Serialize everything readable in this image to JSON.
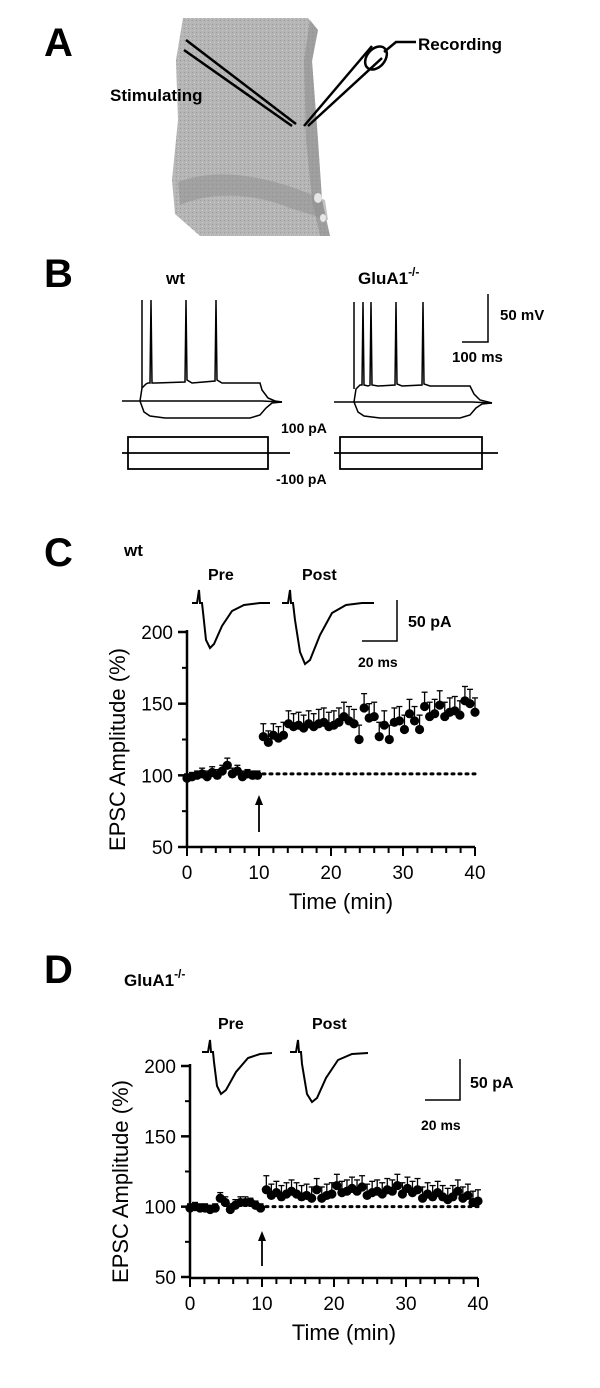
{
  "panel_labels": [
    "A",
    "B",
    "C",
    "D"
  ],
  "panel_a": {
    "stimulating_label": "Stimulating",
    "recording_label": "Recording"
  },
  "panel_b": {
    "wt_label": "wt",
    "ko_label_main": "GluA1",
    "ko_label_sup": "-/-",
    "scale_voltage": "50 mV",
    "scale_time": "100 ms",
    "current_pos": "100 pA",
    "current_neg": "-100 pA"
  },
  "colors": {
    "ink": "#000000",
    "slice_tissue": "#b3b3b3",
    "slice_dark": "#8f8f8f",
    "background": "#ffffff"
  },
  "chart_data": [
    {
      "type": "scatter",
      "group_label": "wt",
      "group_label_sup": "",
      "trace_pre_label": "Pre",
      "trace_post_label": "Post",
      "scale_current": "50 pA",
      "scale_time": "20 ms",
      "xlabel": "Time (min)",
      "ylabel": "EPSC Amplitude (%)",
      "xlim": [
        0,
        40
      ],
      "ylim": [
        50,
        200
      ],
      "xticks": [
        0,
        10,
        20,
        30,
        40
      ],
      "yticks": [
        50,
        100,
        150,
        200
      ],
      "baseline": 101,
      "stimulus_arrow_x": 10,
      "series": [
        {
          "x": [
            0,
            0.7,
            1.4,
            2.1,
            2.8,
            3.5,
            4.2,
            4.9,
            5.6,
            6.3,
            7,
            7.7,
            8.4,
            9.1,
            9.8,
            10.6,
            11.3,
            12,
            12.7,
            13.4,
            14.1,
            14.8,
            15.5,
            16.2,
            16.9,
            17.6,
            18.3,
            19,
            19.7,
            20.4,
            21.1,
            21.8,
            22.5,
            23.2,
            23.9,
            24.6,
            25.3,
            26,
            26.7,
            27.4,
            28.1,
            28.8,
            29.5,
            30.2,
            30.9,
            31.6,
            32.3,
            33,
            33.7,
            34.4,
            35.1,
            35.8,
            36.5,
            37.2,
            37.9,
            38.6,
            39.3,
            40
          ],
          "y": [
            98,
            99,
            100,
            101,
            99,
            102,
            100,
            103,
            107,
            101,
            103,
            99,
            101,
            100,
            100,
            127,
            123,
            128,
            126,
            128,
            136,
            134,
            135,
            133,
            136,
            134,
            136,
            137,
            134,
            135,
            137,
            141,
            138,
            136,
            125,
            147,
            140,
            141,
            127,
            135,
            125,
            137,
            138,
            132,
            143,
            138,
            132,
            148,
            141,
            143,
            149,
            141,
            144,
            145,
            142,
            152,
            150,
            144
          ],
          "err": [
            3,
            3,
            3,
            4,
            4,
            4,
            4,
            4,
            5,
            4,
            4,
            4,
            3,
            3,
            3,
            9,
            8,
            8,
            8,
            9,
            9,
            9,
            9,
            9,
            9,
            9,
            10,
            10,
            10,
            10,
            10,
            10,
            10,
            10,
            10,
            10,
            10,
            10,
            10,
            10,
            10,
            10,
            10,
            10,
            10,
            10,
            10,
            10,
            10,
            10,
            10,
            10,
            10,
            10,
            10,
            10,
            10,
            10
          ]
        }
      ]
    },
    {
      "type": "scatter",
      "group_label": "GluA1",
      "group_label_sup": "-/-",
      "trace_pre_label": "Pre",
      "trace_post_label": "Post",
      "scale_current": "50 pA",
      "scale_time": "20 ms",
      "xlabel": "Time (min)",
      "ylabel": "EPSC Amplitude (%)",
      "xlim": [
        0,
        40
      ],
      "ylim": [
        50,
        200
      ],
      "xticks": [
        0,
        10,
        20,
        30,
        40
      ],
      "yticks": [
        50,
        100,
        150,
        200
      ],
      "baseline": 100,
      "stimulus_arrow_x": 10,
      "series": [
        {
          "x": [
            0,
            0.7,
            1.4,
            2.1,
            2.8,
            3.5,
            4.2,
            4.9,
            5.6,
            6.3,
            7,
            7.7,
            8.4,
            9.1,
            9.8,
            10.6,
            11.3,
            12,
            12.7,
            13.4,
            14.1,
            14.8,
            15.5,
            16.2,
            16.9,
            17.6,
            18.3,
            19,
            19.7,
            20.4,
            21.1,
            21.8,
            22.5,
            23.2,
            23.9,
            24.6,
            25.3,
            26,
            26.7,
            27.4,
            28.1,
            28.8,
            29.5,
            30.2,
            30.9,
            31.6,
            32.3,
            33,
            33.7,
            34.4,
            35.1,
            35.8,
            36.5,
            37.2,
            37.9,
            38.6,
            39.3,
            40
          ],
          "y": [
            99,
            100,
            99,
            99,
            98,
            99,
            106,
            103,
            98,
            101,
            103,
            103,
            103,
            101,
            99,
            112,
            108,
            110,
            107,
            109,
            111,
            109,
            107,
            108,
            106,
            112,
            106,
            108,
            109,
            115,
            110,
            111,
            113,
            111,
            114,
            108,
            110,
            111,
            109,
            112,
            111,
            115,
            109,
            113,
            110,
            112,
            106,
            109,
            107,
            110,
            107,
            105,
            107,
            111,
            106,
            108,
            103,
            104
          ],
          "err": [
            3,
            3,
            3,
            3,
            3,
            3,
            4,
            4,
            4,
            4,
            4,
            4,
            3,
            3,
            3,
            10,
            8,
            8,
            8,
            8,
            8,
            8,
            8,
            8,
            8,
            8,
            8,
            8,
            8,
            8,
            8,
            8,
            8,
            8,
            8,
            8,
            8,
            8,
            8,
            8,
            8,
            8,
            8,
            8,
            8,
            8,
            8,
            8,
            8,
            8,
            8,
            8,
            8,
            8,
            8,
            8,
            8,
            8
          ]
        }
      ]
    }
  ]
}
